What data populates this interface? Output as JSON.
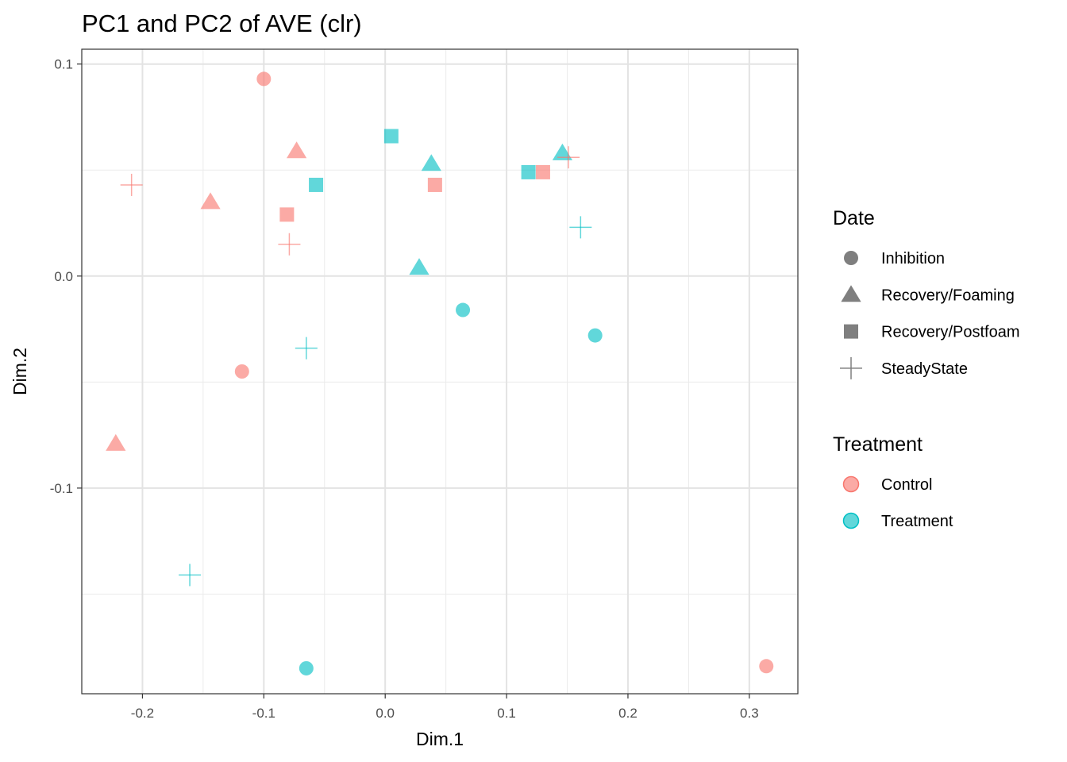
{
  "chart_data": {
    "type": "scatter",
    "title": "PC1 and PC2 of AVE (clr)",
    "xlabel": "Dim.1",
    "ylabel": "Dim.2",
    "xlim": [
      -0.25,
      0.34
    ],
    "ylim": [
      -0.197,
      0.107
    ],
    "x_ticks": [
      -0.2,
      -0.1,
      0.0,
      0.1,
      0.2,
      0.3
    ],
    "x_tick_labels": [
      "-0.2",
      "-0.1",
      "0.0",
      "0.1",
      "0.2",
      "0.3"
    ],
    "y_ticks": [
      -0.1,
      0.0,
      0.1
    ],
    "y_tick_labels": [
      "-0.1",
      "0.0",
      "0.1"
    ],
    "grid": true,
    "legend_position": "right",
    "shape_legend": {
      "title": "Date",
      "items": [
        {
          "label": "Inhibition",
          "shape": "circle"
        },
        {
          "label": "Recovery/Foaming",
          "shape": "triangle"
        },
        {
          "label": "Recovery/Postfoam",
          "shape": "square"
        },
        {
          "label": "SteadyState",
          "shape": "plus"
        }
      ]
    },
    "color_legend": {
      "title": "Treatment",
      "items": [
        {
          "label": "Control",
          "color": "#F8766D"
        },
        {
          "label": "Treatment",
          "color": "#00BFC4"
        }
      ]
    },
    "points": [
      {
        "x": -0.1,
        "y": 0.093,
        "date": "Inhibition",
        "group": "Control"
      },
      {
        "x": -0.118,
        "y": -0.045,
        "date": "Inhibition",
        "group": "Control"
      },
      {
        "x": 0.314,
        "y": -0.184,
        "date": "Inhibition",
        "group": "Control"
      },
      {
        "x": 0.064,
        "y": -0.016,
        "date": "Inhibition",
        "group": "Treatment"
      },
      {
        "x": 0.173,
        "y": -0.028,
        "date": "Inhibition",
        "group": "Treatment"
      },
      {
        "x": -0.065,
        "y": -0.185,
        "date": "Inhibition",
        "group": "Treatment"
      },
      {
        "x": -0.073,
        "y": 0.059,
        "date": "Recovery/Foaming",
        "group": "Control"
      },
      {
        "x": -0.144,
        "y": 0.035,
        "date": "Recovery/Foaming",
        "group": "Control"
      },
      {
        "x": -0.222,
        "y": -0.079,
        "date": "Recovery/Foaming",
        "group": "Control"
      },
      {
        "x": 0.038,
        "y": 0.053,
        "date": "Recovery/Foaming",
        "group": "Treatment"
      },
      {
        "x": 0.146,
        "y": 0.058,
        "date": "Recovery/Foaming",
        "group": "Treatment"
      },
      {
        "x": 0.028,
        "y": 0.004,
        "date": "Recovery/Foaming",
        "group": "Treatment"
      },
      {
        "x": -0.081,
        "y": 0.029,
        "date": "Recovery/Postfoam",
        "group": "Control"
      },
      {
        "x": 0.041,
        "y": 0.043,
        "date": "Recovery/Postfoam",
        "group": "Control"
      },
      {
        "x": 0.13,
        "y": 0.049,
        "date": "Recovery/Postfoam",
        "group": "Control"
      },
      {
        "x": 0.005,
        "y": 0.066,
        "date": "Recovery/Postfoam",
        "group": "Treatment"
      },
      {
        "x": -0.057,
        "y": 0.043,
        "date": "Recovery/Postfoam",
        "group": "Treatment"
      },
      {
        "x": 0.118,
        "y": 0.049,
        "date": "Recovery/Postfoam",
        "group": "Treatment"
      },
      {
        "x": -0.209,
        "y": 0.043,
        "date": "SteadyState",
        "group": "Control"
      },
      {
        "x": -0.079,
        "y": 0.015,
        "date": "SteadyState",
        "group": "Control"
      },
      {
        "x": 0.151,
        "y": 0.056,
        "date": "SteadyState",
        "group": "Control"
      },
      {
        "x": 0.161,
        "y": 0.023,
        "date": "SteadyState",
        "group": "Treatment"
      },
      {
        "x": -0.065,
        "y": -0.034,
        "date": "SteadyState",
        "group": "Treatment"
      },
      {
        "x": -0.161,
        "y": -0.141,
        "date": "SteadyState",
        "group": "Treatment"
      }
    ]
  }
}
